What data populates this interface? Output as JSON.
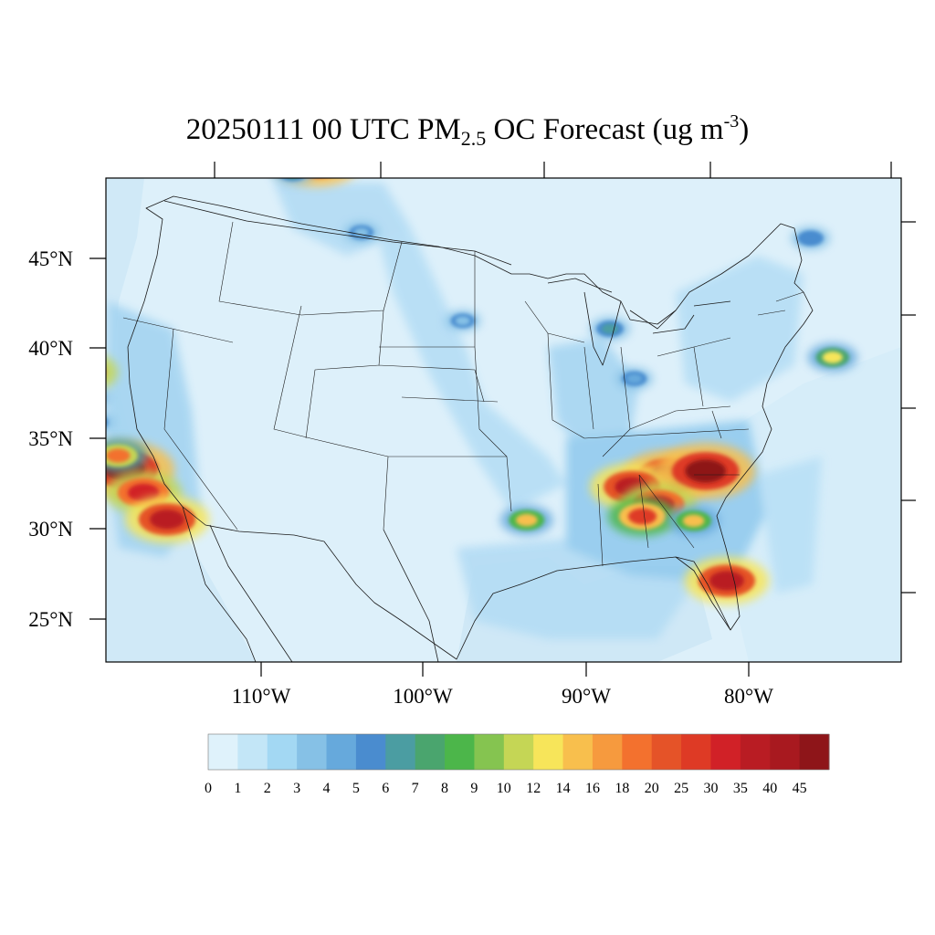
{
  "title": {
    "prefix": "20250111 00 UTC PM",
    "subscript": "2.5",
    "middle": " OC Forecast (ug m",
    "superscript": "-3",
    "suffix": ")"
  },
  "map": {
    "region": "Contiguous United States",
    "projection": "lambert-conformal",
    "lat_labels": [
      "45°N",
      "40°N",
      "35°N",
      "30°N",
      "25°N"
    ],
    "lon_labels": [
      "110°W",
      "100°W",
      "90°W",
      "80°W"
    ],
    "colors": {
      "background": "#ddf0fa",
      "ocean": "#d4ecf8",
      "border": "#1a1a1a"
    }
  },
  "colorbar": {
    "labels": [
      "0",
      "1",
      "2",
      "3",
      "4",
      "5",
      "6",
      "7",
      "8",
      "9",
      "10",
      "12",
      "14",
      "16",
      "18",
      "20",
      "25",
      "30",
      "35",
      "40",
      "45"
    ],
    "colors": [
      "#dff2fb",
      "#c3e6f7",
      "#a3d8f3",
      "#86c1e6",
      "#66a9dc",
      "#4a8ccf",
      "#4b9da2",
      "#4aa56e",
      "#4cb64a",
      "#85c450",
      "#c5d655",
      "#f7e55a",
      "#f8bf4d",
      "#f69a3e",
      "#f3712e",
      "#e55328",
      "#de3a25",
      "#d12127",
      "#b91c23",
      "#a8191f",
      "#8e1519"
    ]
  },
  "chart_data": {
    "type": "heatmap",
    "variable": "PM2.5 OC Forecast",
    "units": "ug m-3",
    "valid_time": "20250111 00 UTC",
    "levels": [
      0,
      1,
      2,
      3,
      4,
      5,
      6,
      7,
      8,
      9,
      10,
      12,
      14,
      16,
      18,
      20,
      25,
      30,
      35,
      40,
      45
    ],
    "hotspots": [
      {
        "lon": -118.3,
        "lat": 34.2,
        "value": 45
      },
      {
        "lon": -118.8,
        "lat": 35.0,
        "value": 18
      },
      {
        "lon": -117.0,
        "lat": 32.8,
        "value": 30
      },
      {
        "lon": -121.8,
        "lat": 39.9,
        "value": 30
      },
      {
        "lon": -121.0,
        "lat": 38.4,
        "value": 8
      },
      {
        "lon": -120.5,
        "lat": 37.0,
        "value": 6
      },
      {
        "lon": -108.6,
        "lat": 51.2,
        "value": 35
      },
      {
        "lon": -107.7,
        "lat": 50.6,
        "value": 40
      },
      {
        "lon": -109.2,
        "lat": 50.0,
        "value": 8
      },
      {
        "lon": -85.0,
        "lat": 33.2,
        "value": 40
      },
      {
        "lon": -87.2,
        "lat": 32.5,
        "value": 35
      },
      {
        "lon": -82.7,
        "lat": 33.6,
        "value": 45
      },
      {
        "lon": -85.6,
        "lat": 31.6,
        "value": 30
      },
      {
        "lon": -86.6,
        "lat": 30.9,
        "value": 25
      },
      {
        "lon": -81.6,
        "lat": 27.6,
        "value": 35
      },
      {
        "lon": -83.5,
        "lat": 30.8,
        "value": 14
      },
      {
        "lon": -93.6,
        "lat": 30.5,
        "value": 14
      },
      {
        "lon": -74.5,
        "lat": 40.5,
        "value": 12
      },
      {
        "lon": -115.4,
        "lat": 31.2,
        "value": 35
      },
      {
        "lon": -121.8,
        "lat": 32.5,
        "value": 6
      },
      {
        "lon": -88.5,
        "lat": 41.2,
        "value": 6
      },
      {
        "lon": -87.0,
        "lat": 38.5,
        "value": 4
      },
      {
        "lon": -97.8,
        "lat": 41.5,
        "value": 3
      },
      {
        "lon": -104.5,
        "lat": 46.5,
        "value": 3
      },
      {
        "lon": -75.5,
        "lat": 47.0,
        "value": 5
      }
    ]
  }
}
